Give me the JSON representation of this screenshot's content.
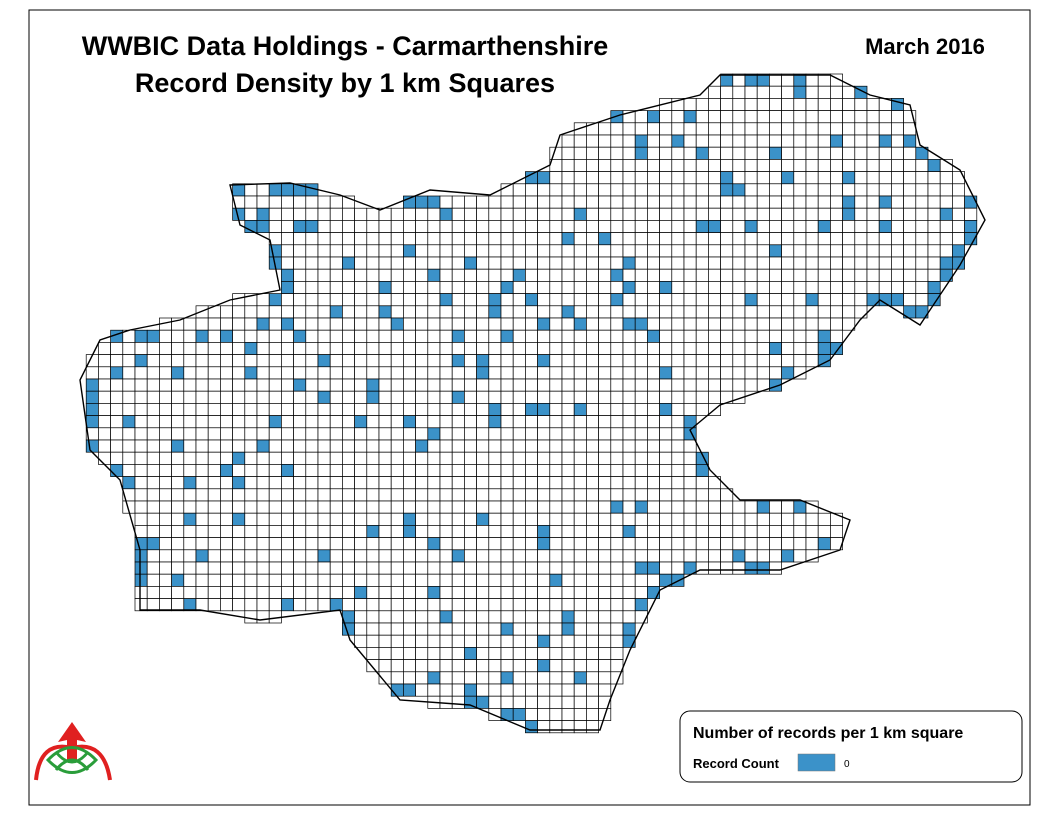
{
  "header": {
    "title_line1": "WWBIC Data Holdings - Carmarthenshire",
    "title_line2": "Record Density by 1 km Squares",
    "date": "March 2016"
  },
  "legend": {
    "title": "Number of records per 1 km square",
    "items": [
      {
        "label": "Record Count",
        "value_label": "0"
      }
    ]
  }
}
